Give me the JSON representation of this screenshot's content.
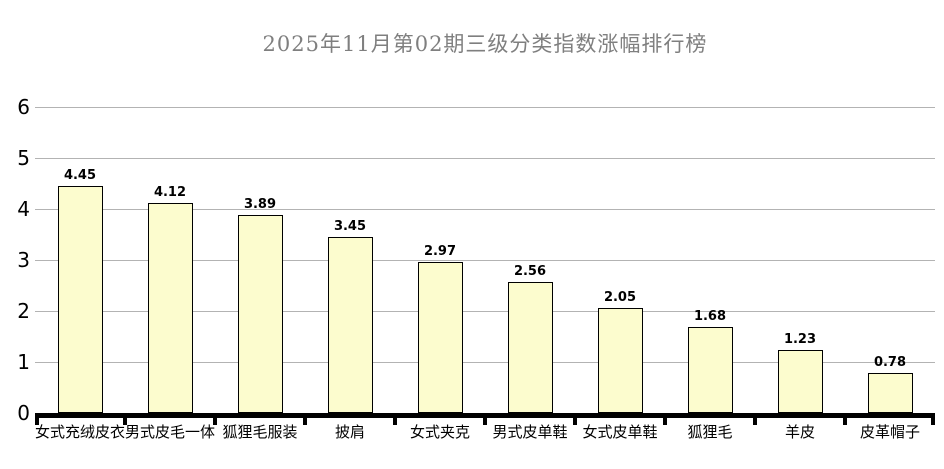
{
  "chart_data": {
    "type": "bar",
    "title": "2025年11月第02期三级分类指数涨幅排行榜",
    "categories": [
      "女式充绒皮衣",
      "男式皮毛一体",
      "狐狸毛服装",
      "披肩",
      "女式夹克",
      "男式皮单鞋",
      "女式皮单鞋",
      "狐狸毛",
      "羊皮",
      "皮革帽子"
    ],
    "values": [
      4.45,
      4.12,
      3.89,
      3.45,
      2.97,
      2.56,
      2.05,
      1.68,
      1.23,
      0.78
    ],
    "value_labels": [
      "4.45",
      "4.12",
      "3.89",
      "3.45",
      "2.97",
      "2.56",
      "2.05",
      "1.68",
      "1.23",
      "0.78"
    ],
    "xlabel": "",
    "ylabel": "",
    "ylim": [
      0,
      6
    ],
    "yticks": [
      0,
      1,
      2,
      3,
      4,
      5,
      6
    ],
    "grid": true,
    "legend": false,
    "layout_hints": {
      "bar_label_position": "above",
      "gridlines": "horizontal"
    },
    "colors": {
      "background": "#FFFFFF",
      "bar_fill": "#FCFCCE",
      "bar_border": "#000000",
      "gridline": "#B3B3B3",
      "axis": "#000000",
      "title_text": "#7F7F7F",
      "label_text": "#000000"
    }
  }
}
